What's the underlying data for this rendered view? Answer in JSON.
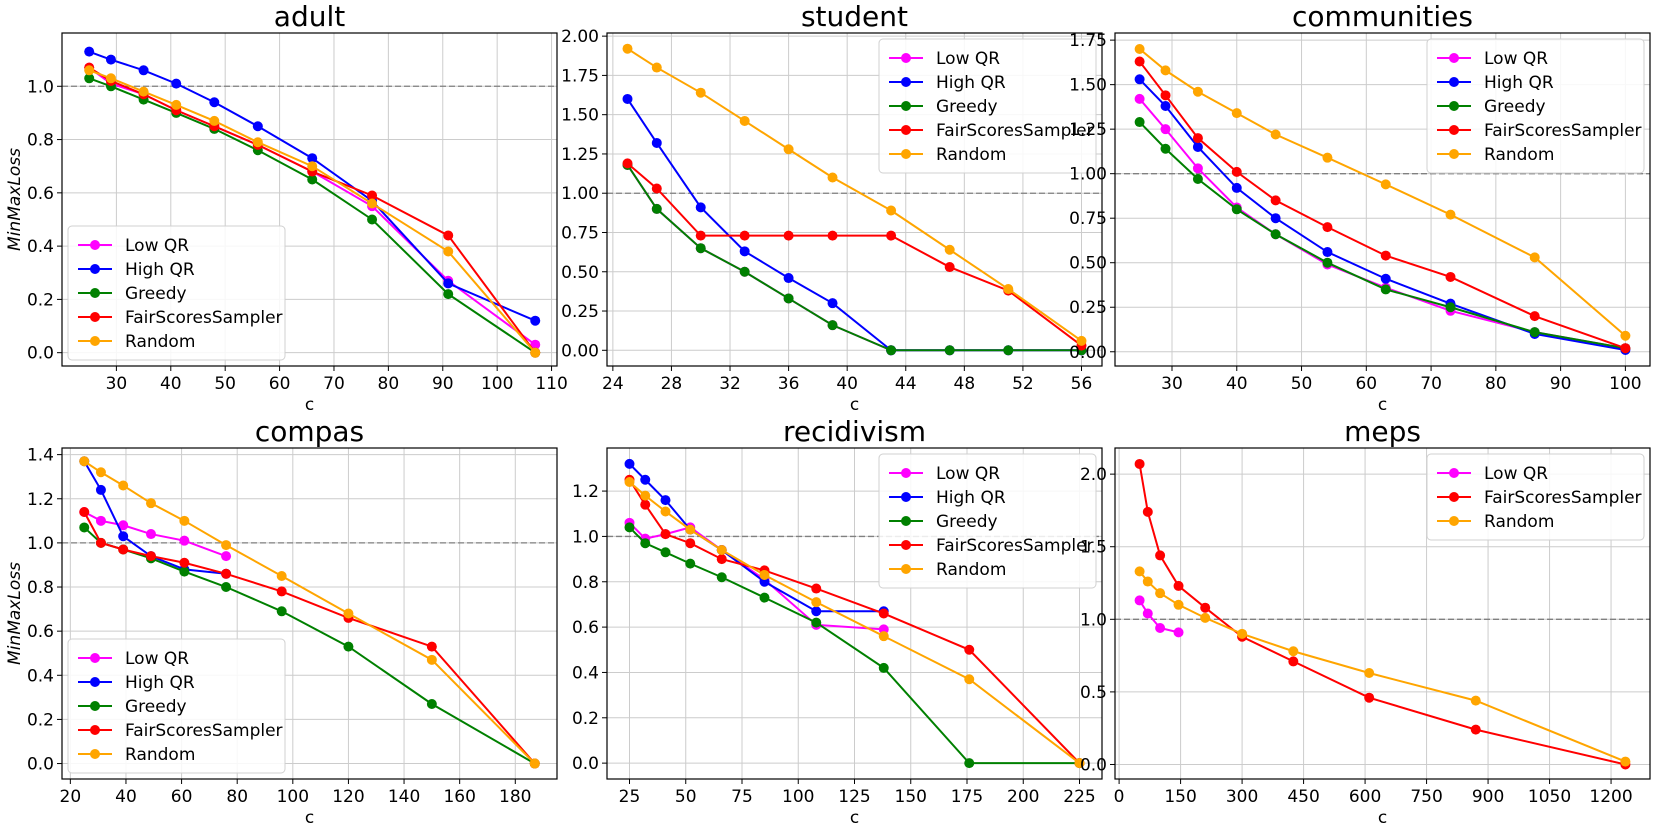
{
  "colors": {
    "Low QR": "#ff00ff",
    "High QR": "#0000ff",
    "Greedy": "#008000",
    "FairScoresSampler": "#ff0000",
    "Random": "#ffa500"
  },
  "chart_data": [
    {
      "type": "line",
      "title": "adult",
      "xlabel": "c",
      "ylabel": "MinMaxLoss",
      "xlim": [
        20,
        111
      ],
      "ylim": [
        -0.05,
        1.2
      ],
      "xticks": [
        30,
        40,
        50,
        60,
        70,
        80,
        90,
        100,
        110
      ],
      "yticks": [
        0.0,
        0.2,
        0.4,
        0.6,
        0.8,
        1.0
      ],
      "tick_decimals": 1,
      "reference_line": 1.0,
      "legend_position": "lower-left",
      "series": [
        {
          "name": "Low QR",
          "x": [
            25,
            29,
            35,
            41,
            48,
            56,
            66,
            77,
            91,
            107
          ],
          "y": [
            1.07,
            1.01,
            0.97,
            0.91,
            0.85,
            0.78,
            0.68,
            0.55,
            0.27,
            0.03
          ]
        },
        {
          "name": "High QR",
          "x": [
            25,
            29,
            35,
            41,
            48,
            56,
            66,
            77,
            91,
            107
          ],
          "y": [
            1.13,
            1.1,
            1.06,
            1.01,
            0.94,
            0.85,
            0.73,
            0.57,
            0.26,
            0.12
          ]
        },
        {
          "name": "Greedy",
          "x": [
            25,
            29,
            35,
            41,
            48,
            56,
            66,
            77,
            91,
            107
          ],
          "y": [
            1.03,
            1.0,
            0.95,
            0.9,
            0.84,
            0.76,
            0.65,
            0.5,
            0.22,
            0.0
          ]
        },
        {
          "name": "FairScoresSampler",
          "x": [
            25,
            29,
            35,
            41,
            48,
            56,
            66,
            77,
            91,
            107
          ],
          "y": [
            1.07,
            1.02,
            0.97,
            0.91,
            0.85,
            0.78,
            0.68,
            0.59,
            0.44,
            0.0
          ]
        },
        {
          "name": "Random",
          "x": [
            25,
            29,
            35,
            41,
            48,
            56,
            66,
            77,
            91,
            107
          ],
          "y": [
            1.06,
            1.03,
            0.98,
            0.93,
            0.87,
            0.79,
            0.7,
            0.56,
            0.38,
            0.0
          ]
        }
      ]
    },
    {
      "type": "line",
      "title": "student",
      "xlabel": "c",
      "ylabel": "",
      "xlim": [
        23.6,
        57.4
      ],
      "ylim": [
        -0.1,
        2.02
      ],
      "xticks": [
        24,
        28,
        32,
        36,
        40,
        44,
        48,
        52,
        56
      ],
      "yticks": [
        0.0,
        0.25,
        0.5,
        0.75,
        1.0,
        1.25,
        1.5,
        1.75,
        2.0
      ],
      "tick_decimals": 2,
      "reference_line": 1.0,
      "legend_position": "upper-right",
      "series": [
        {
          "name": "Low QR",
          "x": [
            25,
            27,
            30,
            33,
            36,
            39,
            43,
            47,
            51,
            56
          ],
          "y": [
            1.18,
            0.9,
            0.65,
            0.5,
            0.33,
            0.16,
            0.0,
            0.0,
            0.0,
            0.0
          ]
        },
        {
          "name": "High QR",
          "x": [
            25,
            27,
            30,
            33,
            36,
            39,
            43,
            47,
            51,
            56
          ],
          "y": [
            1.6,
            1.32,
            0.91,
            0.63,
            0.46,
            0.3,
            0.0,
            0.0,
            0.0,
            0.0
          ]
        },
        {
          "name": "Greedy",
          "x": [
            25,
            27,
            30,
            33,
            36,
            39,
            43,
            47,
            51,
            56
          ],
          "y": [
            1.18,
            0.9,
            0.65,
            0.5,
            0.33,
            0.16,
            0.0,
            0.0,
            0.0,
            0.0
          ]
        },
        {
          "name": "FairScoresSampler",
          "x": [
            25,
            27,
            30,
            33,
            36,
            39,
            43,
            47,
            51,
            56
          ],
          "y": [
            1.19,
            1.03,
            0.73,
            0.73,
            0.73,
            0.73,
            0.73,
            0.53,
            0.38,
            0.03
          ]
        },
        {
          "name": "Random",
          "x": [
            25,
            27,
            30,
            33,
            36,
            39,
            43,
            47,
            51,
            56
          ],
          "y": [
            1.92,
            1.8,
            1.64,
            1.46,
            1.28,
            1.1,
            0.89,
            0.64,
            0.39,
            0.06
          ]
        }
      ]
    },
    {
      "type": "line",
      "title": "communities",
      "xlabel": "c",
      "ylabel": "",
      "xlim": [
        21.2,
        103.8
      ],
      "ylim": [
        -0.08,
        1.79
      ],
      "xticks": [
        30,
        40,
        50,
        60,
        70,
        80,
        90,
        100
      ],
      "yticks": [
        0.0,
        0.25,
        0.5,
        0.75,
        1.0,
        1.25,
        1.5,
        1.75
      ],
      "tick_decimals": 2,
      "reference_line": 1.0,
      "legend_position": "upper-right",
      "series": [
        {
          "name": "Low QR",
          "x": [
            25,
            29,
            34,
            40,
            46,
            54,
            63,
            73,
            86,
            100
          ],
          "y": [
            1.42,
            1.25,
            1.03,
            0.81,
            0.66,
            0.49,
            0.36,
            0.23,
            0.11,
            0.02
          ]
        },
        {
          "name": "High QR",
          "x": [
            25,
            29,
            34,
            40,
            46,
            54,
            63,
            73,
            86,
            100
          ],
          "y": [
            1.53,
            1.38,
            1.15,
            0.92,
            0.75,
            0.56,
            0.41,
            0.27,
            0.1,
            0.01
          ]
        },
        {
          "name": "Greedy",
          "x": [
            25,
            29,
            34,
            40,
            46,
            54,
            63,
            73,
            86,
            100
          ],
          "y": [
            1.29,
            1.14,
            0.97,
            0.8,
            0.66,
            0.5,
            0.35,
            0.25,
            0.11,
            0.02
          ]
        },
        {
          "name": "FairScoresSampler",
          "x": [
            25,
            29,
            34,
            40,
            46,
            54,
            63,
            73,
            86,
            100
          ],
          "y": [
            1.63,
            1.44,
            1.2,
            1.01,
            0.85,
            0.7,
            0.54,
            0.42,
            0.2,
            0.02
          ]
        },
        {
          "name": "Random",
          "x": [
            25,
            29,
            34,
            40,
            46,
            54,
            63,
            73,
            86,
            100
          ],
          "y": [
            1.7,
            1.58,
            1.46,
            1.34,
            1.22,
            1.09,
            0.94,
            0.77,
            0.53,
            0.09
          ]
        }
      ]
    },
    {
      "type": "line",
      "title": "compas",
      "xlabel": "c",
      "ylabel": "MinMaxLoss",
      "xlim": [
        17,
        195
      ],
      "ylim": [
        -0.07,
        1.43
      ],
      "xticks": [
        20,
        40,
        60,
        80,
        100,
        120,
        140,
        160,
        180
      ],
      "yticks": [
        0.0,
        0.2,
        0.4,
        0.6,
        0.8,
        1.0,
        1.2,
        1.4
      ],
      "tick_decimals": 1,
      "reference_line": 1.0,
      "legend_position": "lower-left",
      "series": [
        {
          "name": "Low QR",
          "x": [
            25,
            31,
            39,
            49,
            61,
            76
          ],
          "y": [
            1.14,
            1.1,
            1.08,
            1.04,
            1.01,
            0.94
          ]
        },
        {
          "name": "High QR",
          "x": [
            25,
            31,
            39,
            49,
            61,
            76
          ],
          "y": [
            1.37,
            1.24,
            1.03,
            0.94,
            0.88,
            0.86
          ]
        },
        {
          "name": "Greedy",
          "x": [
            25,
            31,
            39,
            49,
            61,
            76,
            96,
            120,
            150,
            187
          ],
          "y": [
            1.07,
            1.0,
            0.97,
            0.93,
            0.87,
            0.8,
            0.69,
            0.53,
            0.27,
            0.0
          ]
        },
        {
          "name": "FairScoresSampler",
          "x": [
            25,
            31,
            39,
            49,
            61,
            76,
            96,
            120,
            150,
            187
          ],
          "y": [
            1.14,
            1.0,
            0.97,
            0.94,
            0.91,
            0.86,
            0.78,
            0.66,
            0.53,
            0.0
          ]
        },
        {
          "name": "Random",
          "x": [
            25,
            31,
            39,
            49,
            61,
            76,
            96,
            120,
            150,
            187
          ],
          "y": [
            1.37,
            1.32,
            1.26,
            1.18,
            1.1,
            0.99,
            0.85,
            0.68,
            0.47,
            0.0
          ]
        }
      ]
    },
    {
      "type": "line",
      "title": "recidivism",
      "xlabel": "c",
      "ylabel": "",
      "xlim": [
        15,
        235
      ],
      "ylim": [
        -0.07,
        1.39
      ],
      "xticks": [
        25,
        50,
        75,
        100,
        125,
        150,
        175,
        200,
        225
      ],
      "yticks": [
        0.0,
        0.2,
        0.4,
        0.6,
        0.8,
        1.0,
        1.2
      ],
      "tick_decimals": 1,
      "reference_line": 1.0,
      "legend_position": "upper-right",
      "series": [
        {
          "name": "Low QR",
          "x": [
            25,
            32,
            41,
            52,
            66,
            85,
            108,
            138
          ],
          "y": [
            1.06,
            0.99,
            1.01,
            1.04,
            0.94,
            0.81,
            0.61,
            0.59
          ]
        },
        {
          "name": "High QR",
          "x": [
            25,
            32,
            41,
            52,
            66,
            85,
            108,
            138
          ],
          "y": [
            1.32,
            1.25,
            1.16,
            1.03,
            0.94,
            0.8,
            0.67,
            0.67
          ]
        },
        {
          "name": "Greedy",
          "x": [
            25,
            32,
            41,
            52,
            66,
            85,
            108,
            138,
            176,
            225
          ],
          "y": [
            1.04,
            0.97,
            0.93,
            0.88,
            0.82,
            0.73,
            0.62,
            0.42,
            0.0,
            0.0
          ]
        },
        {
          "name": "FairScoresSampler",
          "x": [
            25,
            32,
            41,
            52,
            66,
            85,
            108,
            138,
            176,
            225
          ],
          "y": [
            1.25,
            1.14,
            1.01,
            0.97,
            0.9,
            0.85,
            0.77,
            0.66,
            0.5,
            0.0
          ]
        },
        {
          "name": "Random",
          "x": [
            25,
            32,
            41,
            52,
            66,
            85,
            108,
            138,
            176,
            225
          ],
          "y": [
            1.24,
            1.18,
            1.11,
            1.03,
            0.94,
            0.83,
            0.71,
            0.56,
            0.37,
            0.0
          ]
        }
      ]
    },
    {
      "type": "line",
      "title": "meps",
      "xlabel": "c",
      "ylabel": "",
      "xlim": [
        -10,
        1295
      ],
      "ylim": [
        -0.1,
        2.18
      ],
      "xticks": [
        0,
        150,
        300,
        450,
        600,
        750,
        900,
        1050,
        1200
      ],
      "yticks": [
        0.0,
        0.5,
        1.0,
        1.5,
        2.0
      ],
      "tick_decimals": 1,
      "reference_line": 1.0,
      "legend_position": "upper-right",
      "series": [
        {
          "name": "Low QR",
          "x": [
            50,
            70,
            100,
            145
          ],
          "y": [
            1.13,
            1.04,
            0.94,
            0.91
          ]
        },
        {
          "name": "FairScoresSampler",
          "x": [
            50,
            70,
            100,
            145,
            210,
            300,
            425,
            610,
            870,
            1235
          ],
          "y": [
            2.07,
            1.74,
            1.44,
            1.23,
            1.08,
            0.88,
            0.71,
            0.46,
            0.24,
            0.0
          ]
        },
        {
          "name": "Random",
          "x": [
            50,
            70,
            100,
            145,
            210,
            300,
            425,
            610,
            870,
            1235
          ],
          "y": [
            1.33,
            1.26,
            1.18,
            1.1,
            1.01,
            0.9,
            0.78,
            0.63,
            0.44,
            0.02
          ]
        }
      ]
    }
  ]
}
